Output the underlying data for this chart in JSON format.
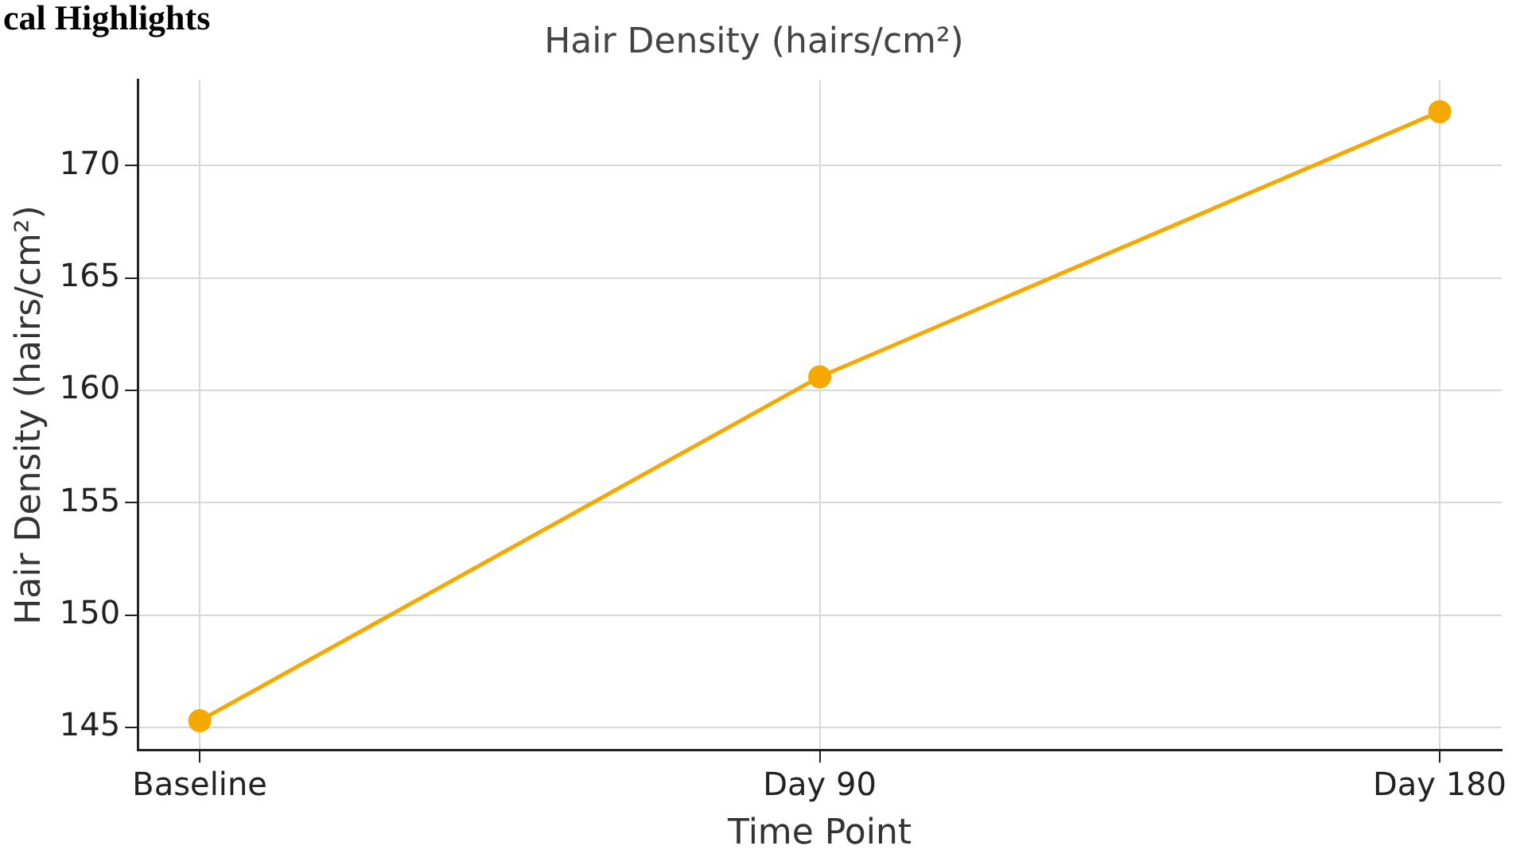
{
  "chart_data": {
    "type": "line",
    "title": "Hair Density (hairs/cm²)",
    "xlabel": "Time Point",
    "ylabel": "Hair Density (hairs/cm²)",
    "annotations": [
      "cal Highlights"
    ],
    "categories": [
      "Baseline",
      "Day 90",
      "Day 180"
    ],
    "series": [
      {
        "color": "#f5a800",
        "values": [
          145.3,
          160.6,
          172.4
        ]
      }
    ],
    "ylim": [
      144,
      173.8
    ],
    "yticks": [
      145,
      150,
      155,
      160,
      165,
      170
    ],
    "grid": true,
    "marker": "circle",
    "line_style": "solid"
  }
}
